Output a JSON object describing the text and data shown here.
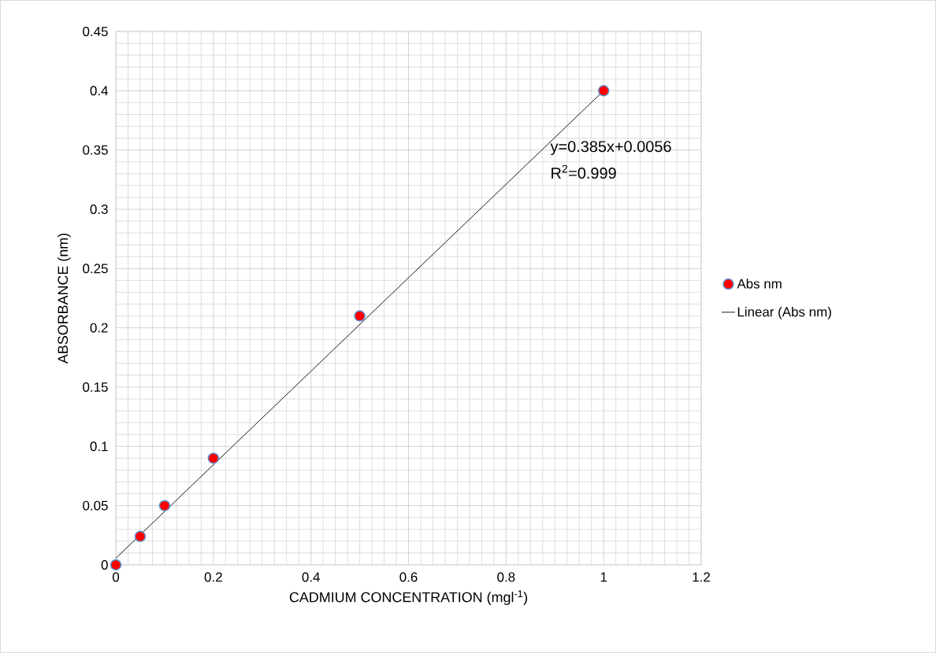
{
  "chart_data": {
    "type": "scatter",
    "xlabel": "CADMIUM CONCENTRATION (mgl$^{-1}$)",
    "ylabel": "ABSORBANCE (nm)",
    "series": [
      {
        "name": "Abs nm",
        "marker": "circle",
        "color": "#ff0000",
        "x": [
          0,
          0.05,
          0.1,
          0.2,
          0.5,
          1
        ],
        "values": [
          0,
          0.024,
          0.05,
          0.09,
          0.21,
          0.4
        ]
      },
      {
        "name": "Linear (Abs nm)",
        "type": "line",
        "marker": "none",
        "color": "#000000",
        "x": [
          0,
          1
        ],
        "values": [
          0.0056,
          0.4
        ]
      }
    ],
    "annotations": [
      "y=0.385x+0.0056",
      "R$^{2}$=0.999"
    ],
    "xlim": [
      0,
      1.2
    ],
    "ylim": [
      0,
      0.45
    ],
    "xticks": [
      0,
      0.2,
      0.4,
      0.6,
      0.8,
      1,
      1.2
    ],
    "yticks": [
      0,
      0.05,
      0.1,
      0.15,
      0.2,
      0.25,
      0.3,
      0.35,
      0.4,
      0.45
    ],
    "grid": true,
    "legend": "right"
  }
}
